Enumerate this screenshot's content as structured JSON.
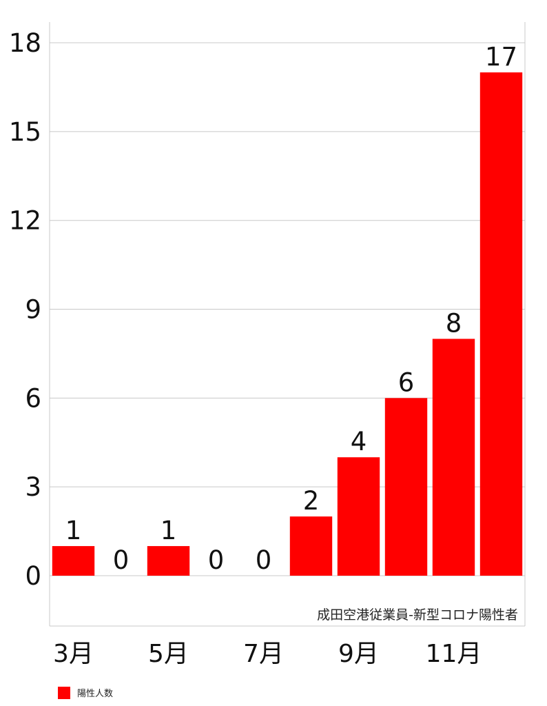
{
  "chart_data": {
    "type": "bar",
    "categories": [
      "3月",
      null,
      "5月",
      null,
      "7月",
      null,
      "9月",
      null,
      "11月",
      null
    ],
    "series": [
      {
        "name": "陽性人数",
        "color": "#ff0000",
        "values": [
          1,
          0,
          1,
          0,
          0,
          2,
          4,
          6,
          8,
          17
        ]
      }
    ],
    "annotation": "成田空港従業員-新型コロナ陽性者",
    "ylim": [
      -1.7,
      18.7
    ],
    "yticks": [
      0,
      3,
      6,
      9,
      12,
      15,
      18
    ],
    "grid": true,
    "legend": "bottom-left"
  }
}
